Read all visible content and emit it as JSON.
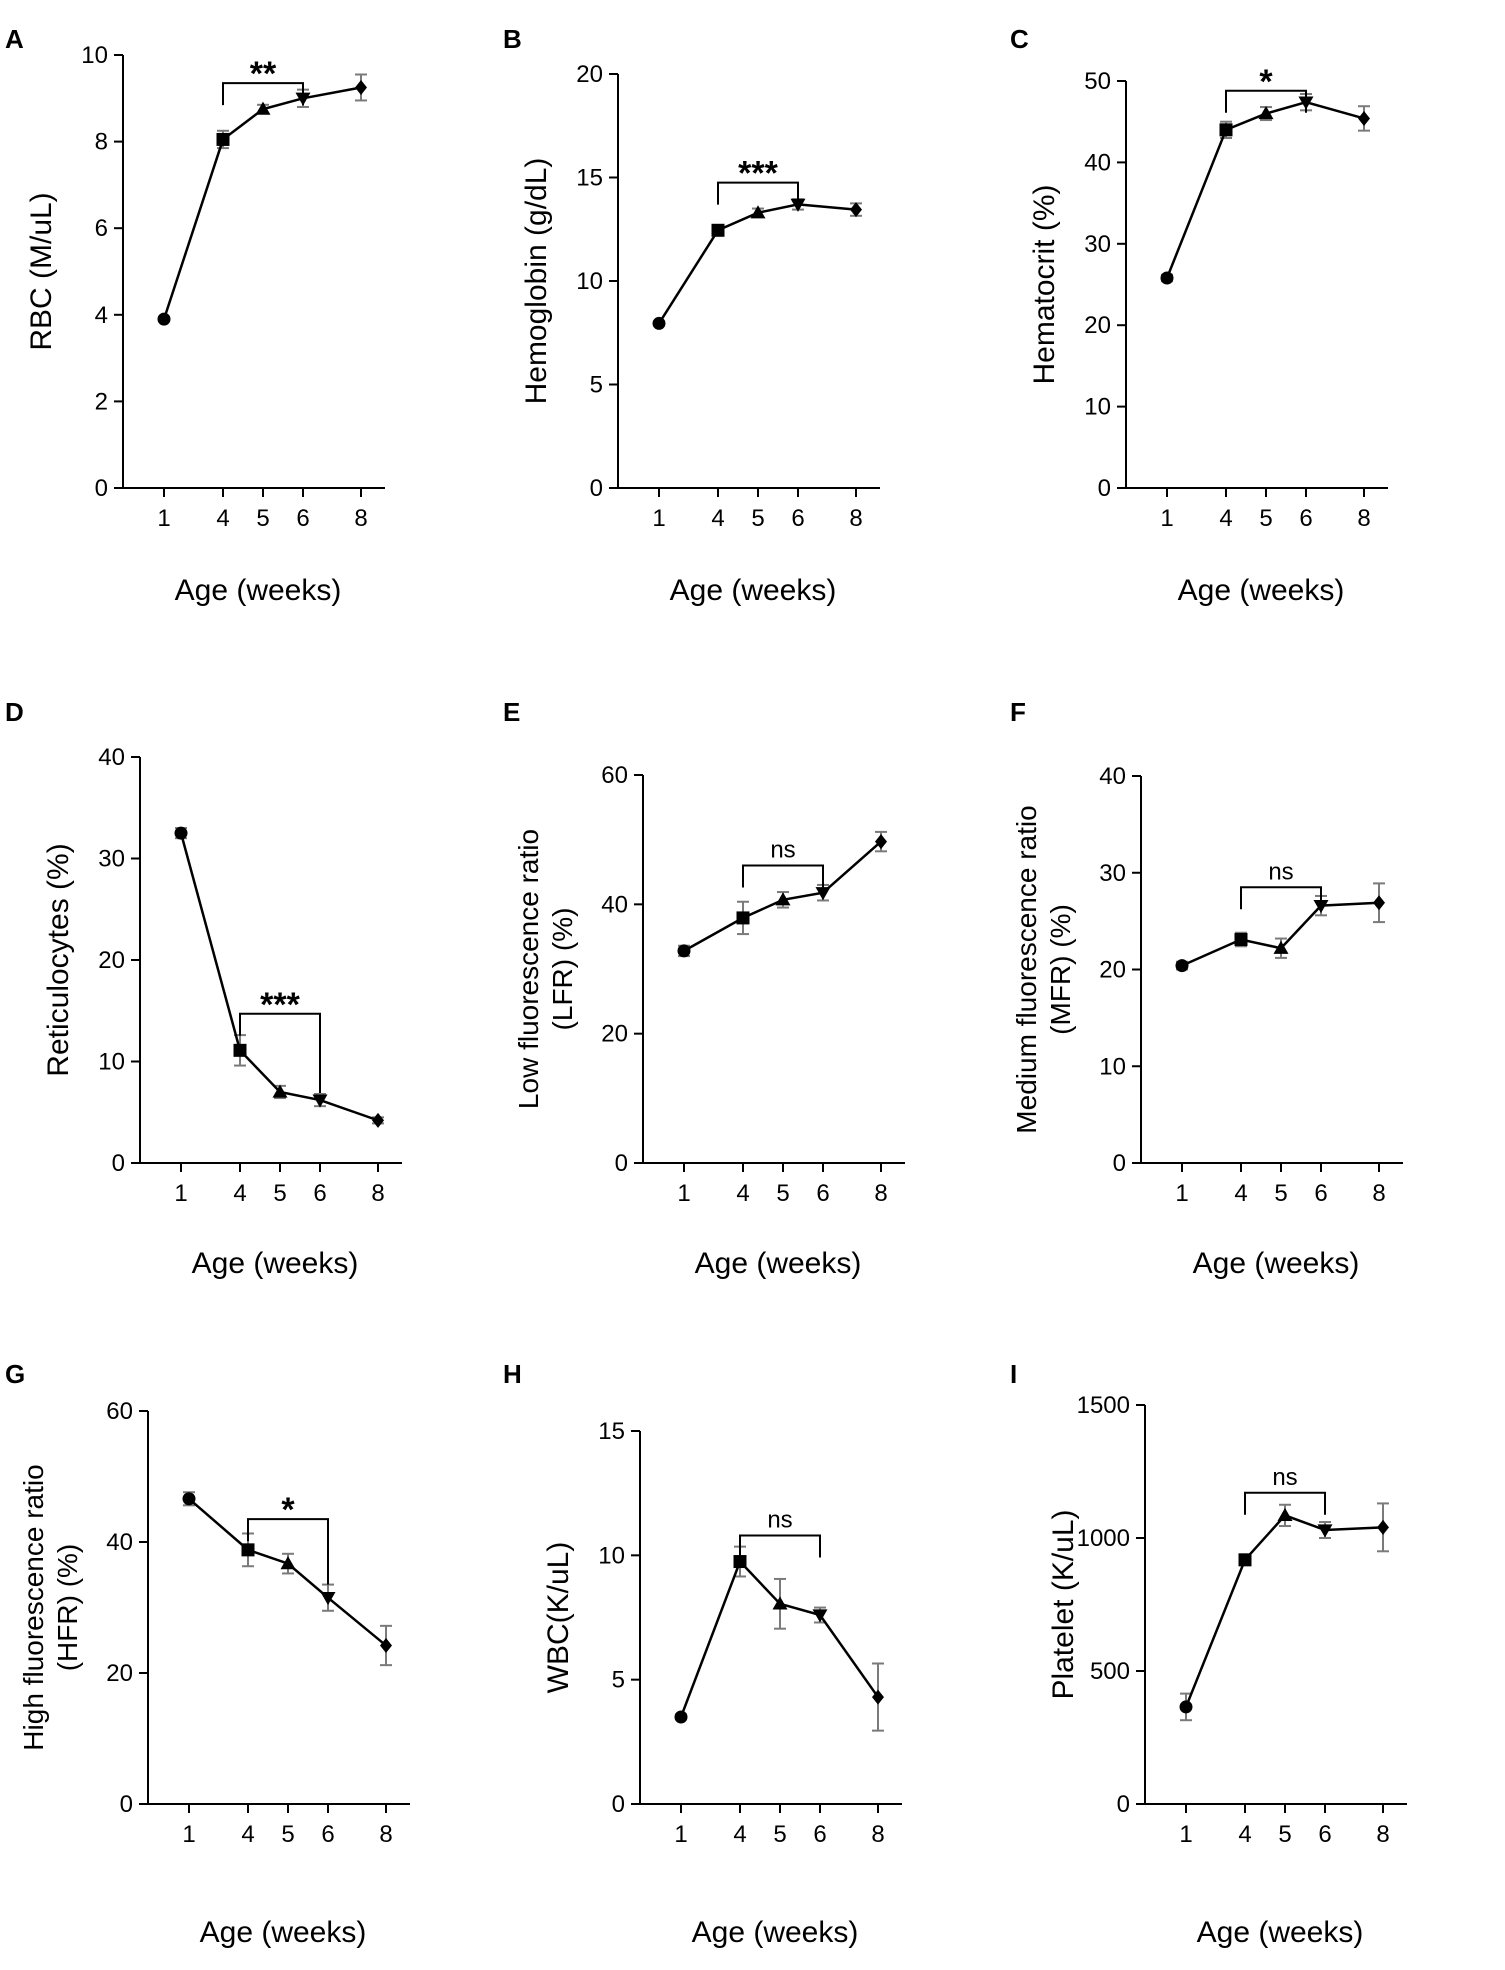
{
  "figure": {
    "x_categories": [
      "1",
      "4",
      "5",
      "6",
      "8"
    ],
    "marker_order": [
      "circle",
      "square",
      "triangle-up",
      "triangle-down",
      "diamond"
    ],
    "colors": {
      "line": "#000000",
      "error_bar": "#7a7a7a",
      "axis": "#000000"
    }
  },
  "chart_data": [
    {
      "panel": "A",
      "type": "line",
      "xlabel": "Age (weeks)",
      "ylabel": "RBC (M/uL)",
      "categories": [
        "1",
        "4",
        "5",
        "6",
        "8"
      ],
      "values": [
        3.9,
        8.05,
        8.75,
        9.0,
        9.25
      ],
      "errors": [
        0.05,
        0.2,
        0.1,
        0.2,
        0.3
      ],
      "ylim": [
        0,
        10
      ],
      "yticks": [
        "0",
        "2",
        "4",
        "6",
        "8",
        "10"
      ],
      "significance": {
        "from": "4",
        "to": "6",
        "label": "**",
        "level": 9.35
      }
    },
    {
      "panel": "B",
      "type": "line",
      "xlabel": "Age (weeks)",
      "ylabel": "Hemoglobin (g/dL)",
      "categories": [
        "1",
        "4",
        "5",
        "6",
        "8"
      ],
      "values": [
        7.95,
        12.45,
        13.3,
        13.7,
        13.45
      ],
      "errors": [
        0.1,
        0.2,
        0.2,
        0.25,
        0.3
      ],
      "ylim": [
        0,
        20
      ],
      "yticks": [
        "0",
        "5",
        "10",
        "15",
        "20"
      ],
      "significance": {
        "from": "4",
        "to": "6",
        "label": "***",
        "level": 14.75
      }
    },
    {
      "panel": "C",
      "type": "line",
      "xlabel": "Age (weeks)",
      "ylabel": "Hematocrit (%)",
      "categories": [
        "1",
        "4",
        "5",
        "6",
        "8"
      ],
      "values": [
        25.8,
        44.0,
        46.0,
        47.4,
        45.4
      ],
      "errors": [
        0.4,
        1.0,
        0.8,
        1.0,
        1.5
      ],
      "ylim": [
        0,
        50
      ],
      "yticks": [
        "0",
        "10",
        "20",
        "30",
        "40",
        "50"
      ],
      "significance": {
        "from": "4",
        "to": "6",
        "label": "*",
        "level": 48.8
      }
    },
    {
      "panel": "D",
      "type": "line",
      "xlabel": "Age (weeks)",
      "ylabel": "Reticulocytes (%)",
      "categories": [
        "1",
        "4",
        "5",
        "6",
        "8"
      ],
      "values": [
        32.5,
        11.1,
        7.0,
        6.2,
        4.2
      ],
      "errors": [
        0.5,
        1.5,
        0.6,
        0.6,
        0.3
      ],
      "ylim": [
        0,
        40
      ],
      "yticks": [
        "0",
        "10",
        "20",
        "30",
        "40"
      ],
      "significance": {
        "from": "4",
        "to": "6",
        "label": "***",
        "level": 14.7,
        "drop_to": 6.9
      }
    },
    {
      "panel": "E",
      "type": "line",
      "xlabel": "Age (weeks)",
      "ylabel": "Low fluorescence ratio (LFR) (%)",
      "ylabel_lines": [
        "Low fluorescence ratio",
        "(LFR) (%)"
      ],
      "categories": [
        "1",
        "4",
        "5",
        "6",
        "8"
      ],
      "values": [
        32.8,
        37.9,
        40.7,
        41.8,
        49.7
      ],
      "errors": [
        0.8,
        2.5,
        1.2,
        1.2,
        1.5
      ],
      "ylim": [
        0,
        60
      ],
      "yticks": [
        "0",
        "20",
        "40",
        "60"
      ],
      "significance": {
        "from": "4",
        "to": "6",
        "label": "ns",
        "level": 46.0
      }
    },
    {
      "panel": "F",
      "type": "line",
      "xlabel": "Age (weeks)",
      "ylabel": "Medium fluorescence ratio (MFR) (%)",
      "ylabel_lines": [
        "Medium fluorescence ratio",
        "(MFR) (%)"
      ],
      "categories": [
        "1",
        "4",
        "5",
        "6",
        "8"
      ],
      "values": [
        20.4,
        23.1,
        22.2,
        26.6,
        26.9
      ],
      "errors": [
        0.4,
        0.7,
        1.0,
        1.0,
        2.0
      ],
      "ylim": [
        0,
        40
      ],
      "yticks": [
        "0",
        "10",
        "20",
        "30",
        "40"
      ],
      "significance": {
        "from": "4",
        "to": "6",
        "label": "ns",
        "level": 28.5
      }
    },
    {
      "panel": "G",
      "type": "line",
      "xlabel": "Age (weeks)",
      "ylabel": "High fluorescence ratio (HFR) (%)",
      "ylabel_lines": [
        "High fluorescence ratio",
        "(HFR) (%)"
      ],
      "categories": [
        "1",
        "4",
        "5",
        "6",
        "8"
      ],
      "values": [
        46.6,
        38.8,
        36.7,
        31.5,
        24.2
      ],
      "errors": [
        1.0,
        2.5,
        1.5,
        2.0,
        3.0
      ],
      "ylim": [
        0,
        60
      ],
      "yticks": [
        "0",
        "20",
        "40",
        "60"
      ],
      "significance": {
        "from": "4",
        "to": "6",
        "label": "*",
        "level": 43.5,
        "drop_to": 33.5
      }
    },
    {
      "panel": "H",
      "type": "line",
      "xlabel": "Age (weeks)",
      "ylabel": "WBC(K/uL)",
      "categories": [
        "1",
        "4",
        "5",
        "6",
        "8"
      ],
      "values": [
        3.5,
        9.75,
        8.05,
        7.6,
        4.3
      ],
      "errors": [
        0.1,
        0.6,
        1.0,
        0.3,
        1.35
      ],
      "ylim": [
        0,
        15
      ],
      "yticks": [
        "0",
        "5",
        "10",
        "15"
      ],
      "significance": {
        "from": "4",
        "to": "6",
        "label": "ns",
        "level": 10.8
      }
    },
    {
      "panel": "I",
      "type": "line",
      "xlabel": "Age (weeks)",
      "ylabel": "Platelet (K/uL)",
      "categories": [
        "1",
        "4",
        "5",
        "6",
        "8"
      ],
      "values": [
        365,
        918,
        1085,
        1030,
        1040
      ],
      "errors": [
        50,
        20,
        40,
        30,
        90
      ],
      "ylim": [
        0,
        1500
      ],
      "yticks": [
        "0",
        "500",
        "1000",
        "1500"
      ],
      "significance": {
        "from": "4",
        "to": "6",
        "label": "ns",
        "level": 1170
      }
    }
  ]
}
